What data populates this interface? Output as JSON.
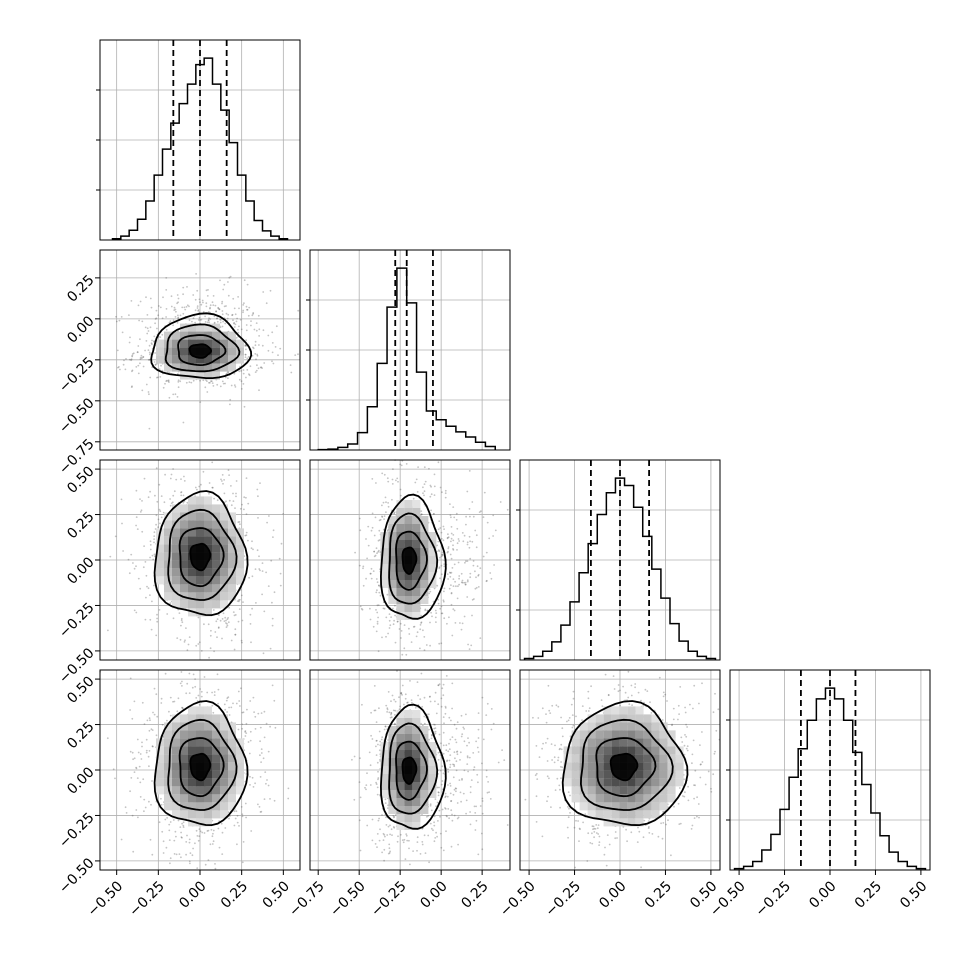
{
  "chart_data": {
    "type": "corner",
    "ndim": 4,
    "axes": [
      {
        "index": 0,
        "range": [
          -0.6,
          0.6
        ],
        "ticks": [
          -0.5,
          -0.25,
          0.0,
          0.25,
          0.5
        ],
        "tick_labels": [
          "−0.50",
          "−0.25",
          "0.00",
          "0.25",
          "0.50"
        ]
      },
      {
        "index": 1,
        "range": [
          -0.8,
          0.42
        ],
        "ticks": [
          -0.75,
          -0.5,
          -0.25,
          0.0,
          0.25
        ],
        "tick_labels": [
          "−0.75",
          "−0.50",
          "−0.25",
          "0.00",
          "0.25"
        ]
      },
      {
        "index": 2,
        "range": [
          -0.55,
          0.55
        ],
        "ticks": [
          -0.5,
          -0.25,
          0.0,
          0.25,
          0.5
        ],
        "tick_labels": [
          "−0.50",
          "−0.25",
          "0.00",
          "0.25",
          "0.50"
        ]
      },
      {
        "index": 3,
        "range": [
          -0.55,
          0.55
        ],
        "ticks": [
          -0.5,
          -0.25,
          0.0,
          0.25,
          0.5
        ],
        "tick_labels": [
          "−0.50",
          "−0.25",
          "0.00",
          "0.25",
          "0.50"
        ]
      }
    ],
    "histograms": [
      {
        "param": 0,
        "bins": [
          -0.5,
          -0.45,
          -0.4,
          -0.35,
          -0.3,
          -0.25,
          -0.2,
          -0.15,
          -0.1,
          -0.05,
          0.0,
          0.05,
          0.1,
          0.15,
          0.2,
          0.25,
          0.3,
          0.35,
          0.4,
          0.45,
          0.5
        ],
        "counts": [
          2,
          6,
          15,
          32,
          60,
          100,
          140,
          180,
          210,
          240,
          270,
          280,
          240,
          200,
          150,
          100,
          60,
          30,
          14,
          6,
          2
        ],
        "quantiles": [
          -0.16,
          0.0,
          0.16
        ]
      },
      {
        "param": 1,
        "bins": [
          -0.72,
          -0.66,
          -0.6,
          -0.54,
          -0.48,
          -0.42,
          -0.36,
          -0.3,
          -0.24,
          -0.18,
          -0.12,
          -0.06,
          0.0,
          0.06,
          0.12,
          0.18,
          0.24,
          0.3
        ],
        "counts": [
          1,
          2,
          6,
          14,
          40,
          100,
          200,
          330,
          420,
          340,
          180,
          90,
          70,
          55,
          42,
          30,
          18,
          8
        ],
        "quantiles": [
          -0.28,
          -0.21,
          -0.05
        ]
      },
      {
        "param": 2,
        "bins": [
          -0.5,
          -0.45,
          -0.4,
          -0.35,
          -0.3,
          -0.25,
          -0.2,
          -0.15,
          -0.1,
          -0.05,
          0.0,
          0.05,
          0.1,
          0.15,
          0.2,
          0.25,
          0.3,
          0.35,
          0.4,
          0.45,
          0.5
        ],
        "counts": [
          2,
          5,
          12,
          25,
          48,
          80,
          120,
          160,
          200,
          230,
          250,
          240,
          210,
          170,
          125,
          85,
          50,
          26,
          12,
          5,
          2
        ],
        "quantiles": [
          -0.16,
          0.0,
          0.16
        ]
      },
      {
        "param": 3,
        "bins": [
          -0.5,
          -0.45,
          -0.4,
          -0.35,
          -0.3,
          -0.25,
          -0.2,
          -0.15,
          -0.1,
          -0.05,
          0.0,
          0.05,
          0.1,
          0.15,
          0.2,
          0.25,
          0.3,
          0.35,
          0.4,
          0.45,
          0.5
        ],
        "counts": [
          2,
          5,
          12,
          28,
          50,
          85,
          130,
          170,
          210,
          240,
          255,
          240,
          210,
          165,
          120,
          80,
          48,
          25,
          12,
          5,
          2
        ],
        "quantiles": [
          -0.16,
          0.0,
          0.14
        ]
      }
    ],
    "pairs": [
      {
        "x": 0,
        "y": 1,
        "center": [
          0.0,
          -0.2
        ],
        "spread": [
          0.14,
          0.08
        ],
        "skew_y": 0.15
      },
      {
        "x": 0,
        "y": 2,
        "center": [
          0.0,
          0.02
        ],
        "spread": [
          0.13,
          0.16
        ],
        "skew_y": 0.0
      },
      {
        "x": 1,
        "y": 2,
        "center": [
          -0.2,
          0.0
        ],
        "spread": [
          0.08,
          0.16
        ],
        "skew_x": 0.25
      },
      {
        "x": 0,
        "y": 3,
        "center": [
          0.0,
          0.02
        ],
        "spread": [
          0.13,
          0.16
        ],
        "skew_y": 0.0
      },
      {
        "x": 1,
        "y": 3,
        "center": [
          -0.2,
          0.0
        ],
        "spread": [
          0.08,
          0.16
        ],
        "skew_x": 0.25
      },
      {
        "x": 2,
        "y": 3,
        "center": [
          0.02,
          0.02
        ],
        "spread": [
          0.16,
          0.16
        ],
        "skew_y": 0.0
      }
    ],
    "grid": true,
    "contour_levels": [
      0.12,
      0.39,
      0.68,
      0.86
    ],
    "colors": {
      "line": "#000000",
      "grid": "#b0b0b0",
      "points": "#555555"
    }
  }
}
